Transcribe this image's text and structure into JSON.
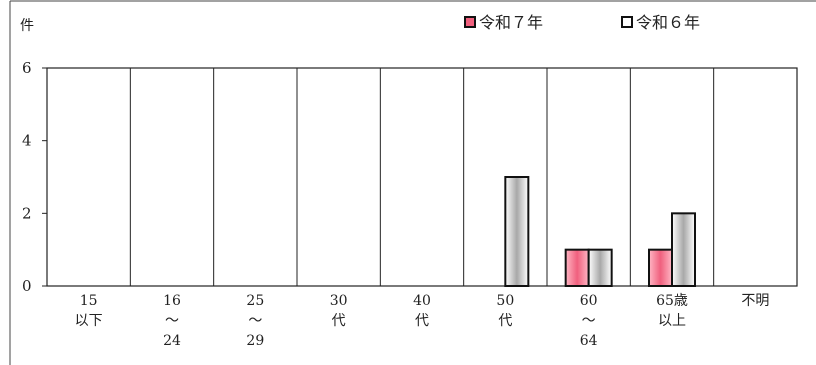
{
  "chart_data": {
    "type": "bar",
    "unit_label": "件",
    "categories": [
      [
        "15",
        "以下"
      ],
      [
        "16",
        "～",
        "24"
      ],
      [
        "25",
        "～",
        "29"
      ],
      [
        "30",
        "代"
      ],
      [
        "40",
        "代"
      ],
      [
        "50",
        "代"
      ],
      [
        "60",
        "～",
        "64"
      ],
      [
        "65歳",
        "以上"
      ],
      [
        "不明"
      ]
    ],
    "series": [
      {
        "name": "令和７年",
        "values": [
          0,
          0,
          0,
          0,
          0,
          0,
          1,
          1,
          0
        ],
        "color": "#f2758f"
      },
      {
        "name": "令和６年",
        "values": [
          0,
          0,
          0,
          0,
          0,
          3,
          1,
          2,
          0
        ],
        "color": "#e6e6e6"
      }
    ],
    "yticks": [
      "0",
      "2",
      "4",
      "6"
    ],
    "ylim": [
      0,
      6
    ],
    "grid": "vertical category separators",
    "legend_position": "top-right"
  }
}
